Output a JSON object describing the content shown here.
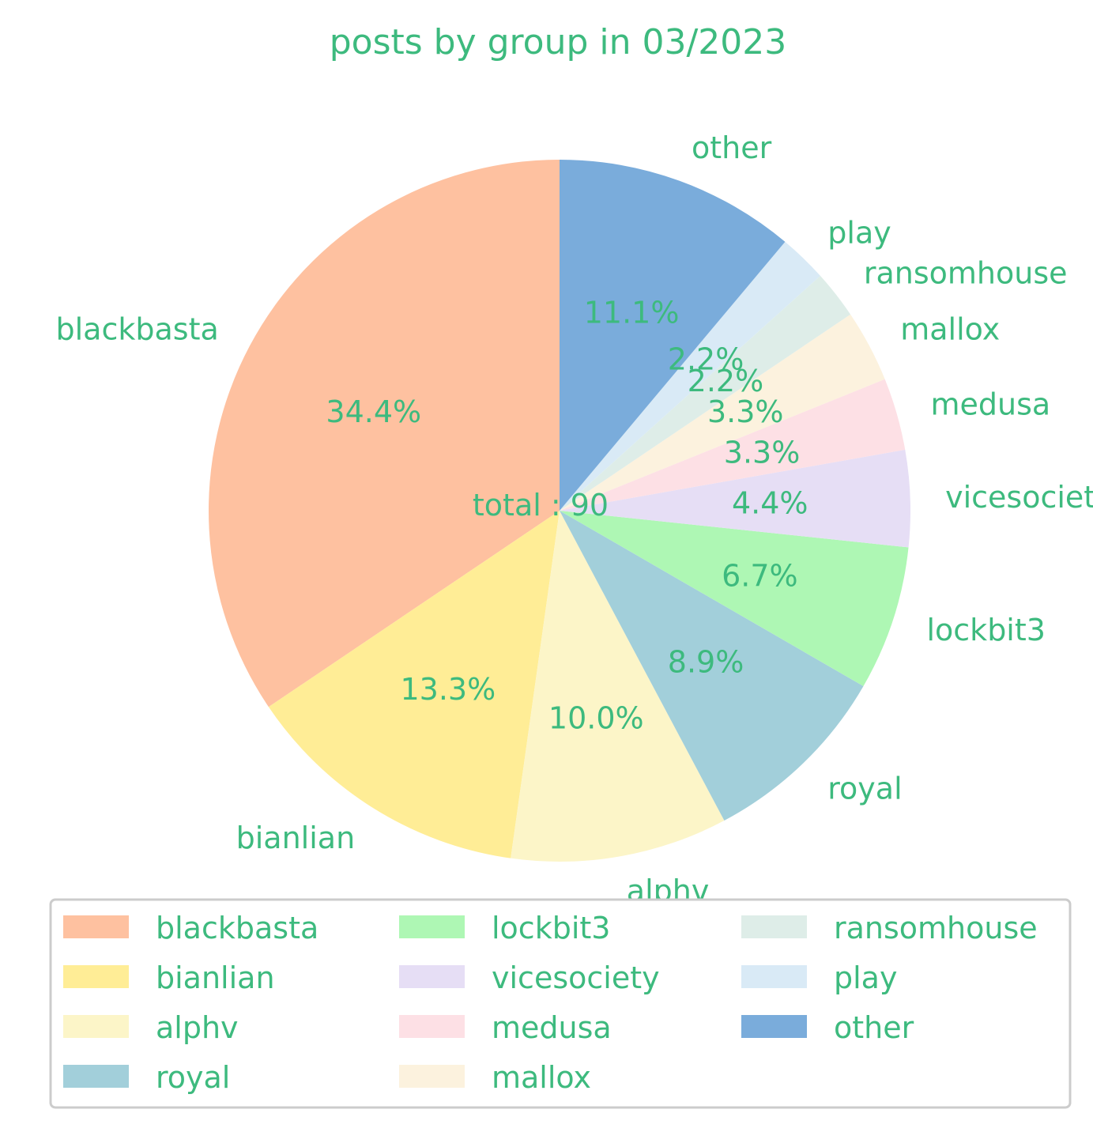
{
  "chart_data": {
    "type": "pie",
    "title": "posts by group in 03/2023",
    "center_label": "total : 90",
    "start_angle_deg": 90,
    "direction": "counterclockwise",
    "slices": [
      {
        "label": "blackbasta",
        "value": 31,
        "percent_label": "34.4%",
        "color": "#fec1a0"
      },
      {
        "label": "bianlian",
        "value": 12,
        "percent_label": "13.3%",
        "color": "#ffed96"
      },
      {
        "label": "alphv",
        "value": 9,
        "percent_label": "10.0%",
        "color": "#fcf5c8"
      },
      {
        "label": "royal",
        "value": 8,
        "percent_label": "8.9%",
        "color": "#a2cfda"
      },
      {
        "label": "lockbit3",
        "value": 6,
        "percent_label": "6.7%",
        "color": "#aef7b4"
      },
      {
        "label": "vicesociety",
        "value": 4,
        "percent_label": "4.4%",
        "color": "#e6def5"
      },
      {
        "label": "medusa",
        "value": 3,
        "percent_label": "3.3%",
        "color": "#fde0e5"
      },
      {
        "label": "mallox",
        "value": 3,
        "percent_label": "3.3%",
        "color": "#fcf2de"
      },
      {
        "label": "ransomhouse",
        "value": 2,
        "percent_label": "2.2%",
        "color": "#deede8"
      },
      {
        "label": "play",
        "value": 2,
        "percent_label": "2.2%",
        "color": "#d9eaf6"
      },
      {
        "label": "other",
        "value": 10,
        "percent_label": "11.1%",
        "color": "#7aacdb"
      }
    ],
    "legend": {
      "placement": "bottom",
      "columns": 3,
      "entries": [
        "blackbasta",
        "bianlian",
        "alphv",
        "royal",
        "lockbit3",
        "vicesociety",
        "medusa",
        "mallox",
        "ransomhouse",
        "play",
        "other"
      ]
    },
    "text_color": "#3dba7e"
  }
}
